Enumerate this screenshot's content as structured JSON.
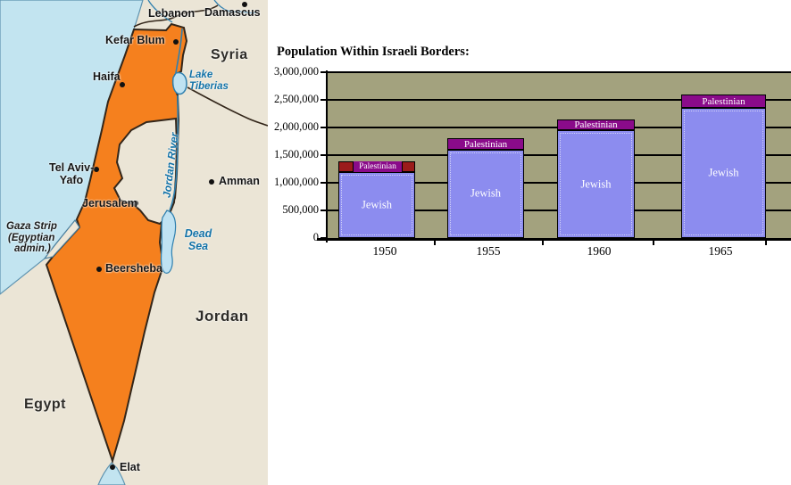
{
  "map": {
    "labels": {
      "lebanon": "Lebanon",
      "damascus": "Damascus",
      "kefar_blum": "Kefar Blum",
      "syria": "Syria",
      "haifa": "Haifa",
      "lake_tiberias_line1": "Lake",
      "lake_tiberias_line2": "Tiberias",
      "tel_aviv_line1": "Tel Aviv-",
      "tel_aviv_line2": "Yafo",
      "jordan_river": "Jordan River",
      "amman": "Amman",
      "jerusalem": "Jerusalem",
      "gaza_line1": "Gaza Strip",
      "gaza_line2": "(Egyptian",
      "gaza_line3": "admin.)",
      "dead_sea_line1": "Dead",
      "dead_sea_line2": "Sea",
      "beersheba": "Beersheba",
      "jordan_country": "Jordan",
      "egypt": "Egypt",
      "elat": "Elat"
    },
    "colors": {
      "israel_fill": "#F5801E",
      "sea": "#C2E4F0",
      "land": "#EBE5D6",
      "border_line": "#33261A",
      "water_line": "#2E7FAE",
      "water_label": "#1373A8"
    }
  },
  "chart_data": {
    "type": "bar",
    "stacked": true,
    "title": "Population Within Israeli Borders:",
    "categories": [
      "1950",
      "1955",
      "1960",
      "1965"
    ],
    "series": [
      {
        "name": "Jewish",
        "values": [
          1200000,
          1600000,
          1950000,
          2350000
        ],
        "color": "#8C8CEF"
      },
      {
        "name": "Palestinian",
        "values": [
          180000,
          200000,
          200000,
          250000
        ],
        "color": "#8A0B8A",
        "segment_fill_per_bar": [
          "#9B1B1B",
          "#8A0B8A",
          "#8A0B8A",
          "#8A0B8A"
        ],
        "segment_style_per_bar": [
          "brick-red-with-purple-chip",
          "purple-band",
          "purple-band",
          "purple-band"
        ]
      }
    ],
    "totals": [
      1380000,
      1800000,
      2150000,
      2600000
    ],
    "xlabel": "",
    "ylabel": "",
    "ylim": [
      0,
      3000000
    ],
    "yticks": [
      0,
      500000,
      1000000,
      1500000,
      2000000,
      2500000,
      3000000
    ],
    "ytick_labels": [
      "0",
      "500,000",
      "1,000,000",
      "1,500,000",
      "2,000,000",
      "2,500,000",
      "3,000,000"
    ],
    "grid": "horizontal black lines every 500,000",
    "legend_position": "labels drawn inside bar segments",
    "plot_background": "#A3A27E"
  }
}
